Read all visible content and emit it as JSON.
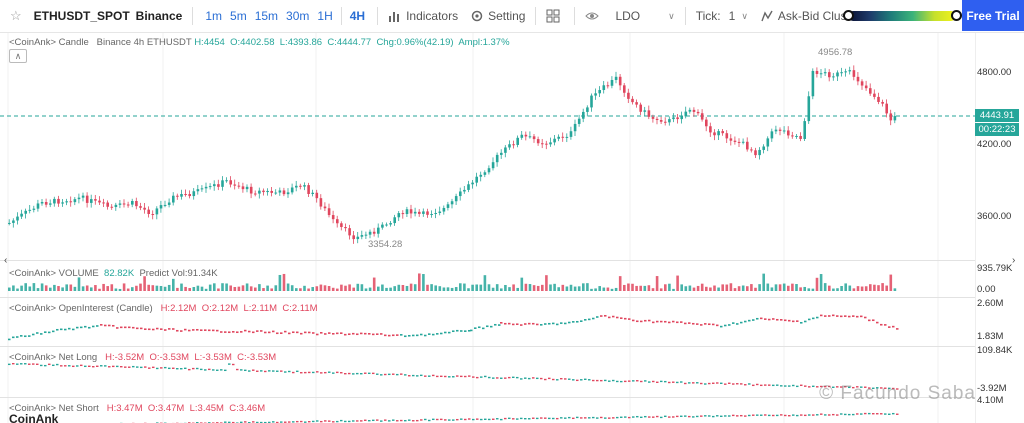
{
  "toolbar": {
    "symbol": "ETHUSDT_SPOT",
    "exchange": "Binance",
    "intervals": [
      "1m",
      "5m",
      "15m",
      "30m",
      "1H",
      "4H"
    ],
    "active_interval": "4H",
    "indicators_label": "Indicators",
    "setting_label": "Setting",
    "coin_select": "LDO",
    "tick_label": "Tick:",
    "tick_value": "1",
    "cluster_label": "Ask-Bid Cluster",
    "free_trial_label": "Free Trial"
  },
  "main_legend": {
    "source": "<CoinAnk> Candle",
    "market": "Binance 4h ETHUSDT",
    "high": "H:4454",
    "open": "O:4402.58",
    "low": "L:4393.86",
    "close": "C:4444.77",
    "change": "Chg:0.96%(42.19)",
    "amplitude": "Ampl:1.37%"
  },
  "price_axis": {
    "labels": [
      "4800.00",
      "4200.00",
      "3600.00"
    ],
    "current_price": "4443.91",
    "countdown": "00:22:23",
    "high_marker": "4956.78",
    "low_marker": "3354.28"
  },
  "volume_pane": {
    "label": "<CoinAnk> VOLUME",
    "value": "82.82K",
    "predict": "Predict Vol:91.34K",
    "axis_top": "935.79K",
    "axis_bottom": "0.00"
  },
  "oi_pane": {
    "label": "<CoinAnk> OpenInterest (Candle)",
    "high": "H:2.12M",
    "open": "O:2.12M",
    "low": "L:2.11M",
    "close": "C:2.11M",
    "axis_top": "2.60M",
    "axis_bottom": "1.83M"
  },
  "netlong_pane": {
    "label": "<CoinAnk> Net Long",
    "high": "H:-3.52M",
    "open": "O:-3.53M",
    "low": "L:-3.53M",
    "close": "C:-3.53M",
    "axis_top": "109.84K",
    "axis_bottom": "-3.92M"
  },
  "netshort_pane": {
    "label": "<CoinAnk> Net Short",
    "high": "H:3.47M",
    "open": "O:3.47M",
    "low": "L:3.45M",
    "close": "C:3.46M",
    "axis_top": "4.10M"
  },
  "bottom_title": "CoinAnk",
  "watermark": "© Facundo Saba",
  "colors": {
    "up": "#26a69a",
    "down": "#e0465e",
    "accent": "#2f5ff0"
  }
}
